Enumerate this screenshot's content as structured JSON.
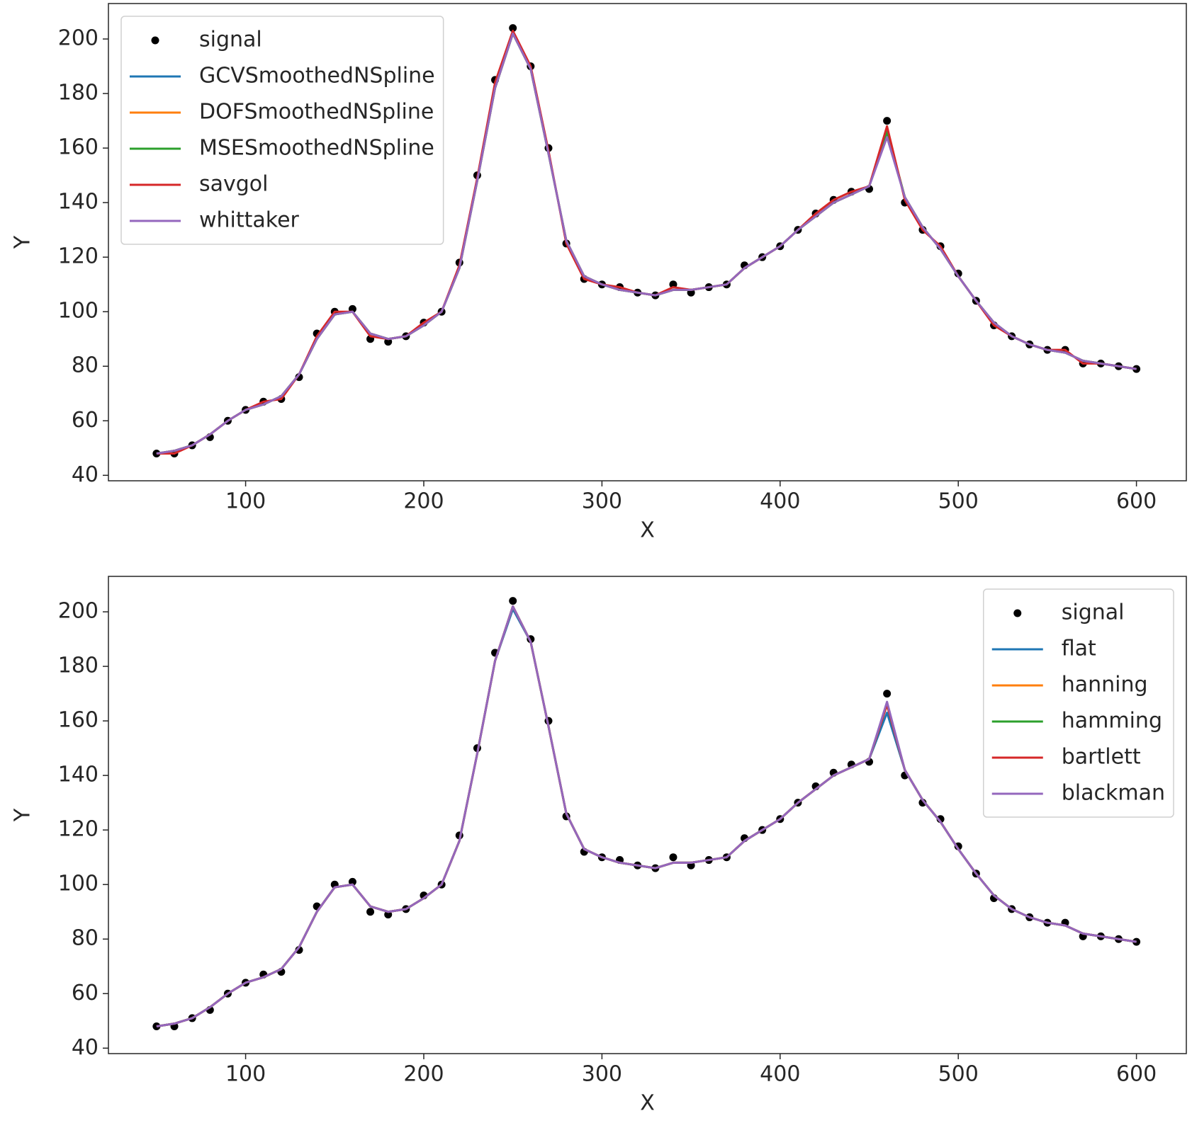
{
  "chart_data": [
    {
      "type": "line",
      "xlabel": "X",
      "ylabel": "Y",
      "x": [
        50,
        60,
        70,
        80,
        90,
        100,
        110,
        120,
        130,
        140,
        150,
        160,
        170,
        180,
        190,
        200,
        210,
        220,
        230,
        240,
        250,
        260,
        270,
        280,
        290,
        300,
        310,
        320,
        330,
        340,
        350,
        360,
        370,
        380,
        390,
        400,
        410,
        420,
        430,
        440,
        450,
        460,
        470,
        480,
        490,
        500,
        510,
        520,
        530,
        540,
        550,
        560,
        570,
        580,
        590,
        600
      ],
      "xlim": [
        23,
        628
      ],
      "ylim": [
        38,
        213
      ],
      "xticks": [
        100,
        200,
        300,
        400,
        500,
        600
      ],
      "yticks": [
        40,
        60,
        80,
        100,
        120,
        140,
        160,
        180,
        200
      ],
      "legend": "upper left",
      "series": [
        {
          "name": "signal",
          "mode": "markers",
          "color": "#000000",
          "values": [
            48,
            48,
            51,
            54,
            60,
            64,
            67,
            68,
            76,
            92,
            100,
            101,
            90,
            89,
            91,
            96,
            100,
            118,
            150,
            185,
            204,
            190,
            160,
            125,
            112,
            110,
            109,
            107,
            106,
            110,
            107,
            109,
            110,
            117,
            120,
            124,
            130,
            136,
            141,
            144,
            145,
            170,
            140,
            130,
            124,
            114,
            104,
            95,
            91,
            88,
            86,
            86,
            81,
            81,
            80,
            79
          ]
        },
        {
          "name": "GCVSmoothedNSpline",
          "mode": "lines",
          "color": "#1f77b4",
          "values": [
            48,
            49,
            51,
            55,
            60,
            64,
            66,
            69,
            77,
            90,
            99,
            100,
            92,
            90,
            91,
            95,
            100,
            116,
            148,
            182,
            202,
            189,
            158,
            126,
            113,
            110,
            108,
            107,
            106,
            108,
            108,
            109,
            110,
            116,
            120,
            124,
            130,
            135,
            140,
            143,
            146,
            165,
            142,
            131,
            123,
            113,
            104,
            96,
            91,
            88,
            86,
            85,
            82,
            81,
            80,
            79
          ]
        },
        {
          "name": "DOFSmoothedNSpline",
          "mode": "lines",
          "color": "#ff7f0e",
          "values": [
            48,
            49,
            51,
            55,
            60,
            64,
            66,
            69,
            77,
            90,
            99,
            100,
            92,
            90,
            91,
            95,
            100,
            116,
            148,
            182,
            202,
            189,
            158,
            126,
            113,
            110,
            108,
            107,
            106,
            108,
            108,
            109,
            110,
            116,
            120,
            124,
            130,
            135,
            140,
            143,
            146,
            166,
            142,
            131,
            123,
            113,
            104,
            96,
            91,
            88,
            86,
            85,
            82,
            81,
            80,
            79
          ]
        },
        {
          "name": "MSESmoothedNSpline",
          "mode": "lines",
          "color": "#2ca02c",
          "values": [
            48,
            49,
            51,
            55,
            60,
            64,
            66,
            69,
            77,
            90,
            99,
            100,
            92,
            90,
            91,
            95,
            100,
            116,
            148,
            182,
            202,
            189,
            158,
            126,
            113,
            110,
            108,
            107,
            106,
            108,
            108,
            109,
            110,
            116,
            120,
            124,
            130,
            135,
            140,
            143,
            146,
            166,
            142,
            131,
            123,
            113,
            104,
            96,
            91,
            88,
            86,
            85,
            82,
            81,
            80,
            79
          ]
        },
        {
          "name": "savgol",
          "mode": "lines",
          "color": "#d62728",
          "values": [
            48,
            48,
            51,
            55,
            60,
            64,
            67,
            68,
            77,
            91,
            100,
            100,
            91,
            90,
            91,
            96,
            100,
            117,
            149,
            184,
            203,
            190,
            159,
            125,
            112,
            110,
            109,
            107,
            106,
            109,
            108,
            109,
            110,
            116,
            120,
            124,
            130,
            136,
            141,
            144,
            146,
            168,
            141,
            130,
            124,
            113,
            104,
            95,
            91,
            88,
            86,
            86,
            81,
            81,
            80,
            79
          ]
        },
        {
          "name": "whittaker",
          "mode": "lines",
          "color": "#9467bd",
          "values": [
            48,
            49,
            51,
            55,
            60,
            64,
            66,
            69,
            77,
            90,
            99,
            100,
            92,
            90,
            91,
            95,
            100,
            116,
            148,
            182,
            202,
            189,
            158,
            126,
            113,
            110,
            108,
            107,
            106,
            108,
            108,
            109,
            110,
            116,
            120,
            124,
            130,
            135,
            140,
            143,
            146,
            164,
            142,
            131,
            123,
            113,
            104,
            96,
            91,
            88,
            86,
            85,
            82,
            81,
            80,
            79
          ]
        }
      ]
    },
    {
      "type": "line",
      "xlabel": "X",
      "ylabel": "Y",
      "x": [
        50,
        60,
        70,
        80,
        90,
        100,
        110,
        120,
        130,
        140,
        150,
        160,
        170,
        180,
        190,
        200,
        210,
        220,
        230,
        240,
        250,
        260,
        270,
        280,
        290,
        300,
        310,
        320,
        330,
        340,
        350,
        360,
        370,
        380,
        390,
        400,
        410,
        420,
        430,
        440,
        450,
        460,
        470,
        480,
        490,
        500,
        510,
        520,
        530,
        540,
        550,
        560,
        570,
        580,
        590,
        600
      ],
      "xlim": [
        23,
        628
      ],
      "ylim": [
        38,
        213
      ],
      "xticks": [
        100,
        200,
        300,
        400,
        500,
        600
      ],
      "yticks": [
        40,
        60,
        80,
        100,
        120,
        140,
        160,
        180,
        200
      ],
      "legend": "upper right",
      "series": [
        {
          "name": "signal",
          "mode": "markers",
          "color": "#000000",
          "values": [
            48,
            48,
            51,
            54,
            60,
            64,
            67,
            68,
            76,
            92,
            100,
            101,
            90,
            89,
            91,
            96,
            100,
            118,
            150,
            185,
            204,
            190,
            160,
            125,
            112,
            110,
            109,
            107,
            106,
            110,
            107,
            109,
            110,
            117,
            120,
            124,
            130,
            136,
            141,
            144,
            145,
            170,
            140,
            130,
            124,
            114,
            104,
            95,
            91,
            88,
            86,
            86,
            81,
            81,
            80,
            79
          ]
        },
        {
          "name": "flat",
          "mode": "lines",
          "color": "#1f77b4",
          "values": [
            48,
            49,
            51,
            55,
            60,
            64,
            66,
            69,
            77,
            90,
            99,
            100,
            92,
            90,
            91,
            95,
            100,
            116,
            148,
            182,
            201,
            189,
            158,
            126,
            113,
            110,
            108,
            107,
            106,
            108,
            108,
            109,
            110,
            116,
            120,
            124,
            130,
            135,
            140,
            143,
            146,
            163,
            142,
            131,
            123,
            113,
            104,
            96,
            91,
            88,
            86,
            85,
            82,
            81,
            80,
            79
          ]
        },
        {
          "name": "hanning",
          "mode": "lines",
          "color": "#ff7f0e",
          "values": [
            48,
            49,
            51,
            55,
            60,
            64,
            66,
            69,
            77,
            90,
            99,
            100,
            92,
            90,
            91,
            95,
            100,
            116,
            148,
            182,
            202,
            189,
            158,
            126,
            113,
            110,
            108,
            107,
            106,
            108,
            108,
            109,
            110,
            116,
            120,
            124,
            130,
            135,
            140,
            143,
            146,
            166,
            142,
            131,
            123,
            113,
            104,
            96,
            91,
            88,
            86,
            85,
            82,
            81,
            80,
            79
          ]
        },
        {
          "name": "hamming",
          "mode": "lines",
          "color": "#2ca02c",
          "values": [
            48,
            49,
            51,
            55,
            60,
            64,
            66,
            69,
            77,
            90,
            99,
            100,
            92,
            90,
            91,
            95,
            100,
            116,
            148,
            182,
            202,
            189,
            158,
            126,
            113,
            110,
            108,
            107,
            106,
            108,
            108,
            109,
            110,
            116,
            120,
            124,
            130,
            135,
            140,
            143,
            146,
            166,
            142,
            131,
            123,
            113,
            104,
            96,
            91,
            88,
            86,
            85,
            82,
            81,
            80,
            79
          ]
        },
        {
          "name": "bartlett",
          "mode": "lines",
          "color": "#d62728",
          "values": [
            48,
            49,
            51,
            55,
            60,
            64,
            66,
            69,
            77,
            90,
            99,
            100,
            92,
            90,
            91,
            95,
            100,
            116,
            148,
            182,
            202,
            189,
            158,
            126,
            113,
            110,
            108,
            107,
            106,
            108,
            108,
            109,
            110,
            116,
            120,
            124,
            130,
            135,
            140,
            143,
            146,
            166,
            142,
            131,
            123,
            113,
            104,
            96,
            91,
            88,
            86,
            85,
            82,
            81,
            80,
            79
          ]
        },
        {
          "name": "blackman",
          "mode": "lines",
          "color": "#9467bd",
          "values": [
            48,
            49,
            51,
            55,
            60,
            64,
            66,
            69,
            77,
            90,
            99,
            100,
            92,
            90,
            91,
            95,
            100,
            116,
            148,
            182,
            202,
            189,
            158,
            126,
            113,
            110,
            108,
            107,
            106,
            108,
            108,
            109,
            110,
            116,
            120,
            124,
            130,
            135,
            140,
            143,
            146,
            167,
            142,
            131,
            123,
            113,
            104,
            96,
            91,
            88,
            86,
            85,
            82,
            81,
            80,
            79
          ]
        }
      ]
    }
  ]
}
